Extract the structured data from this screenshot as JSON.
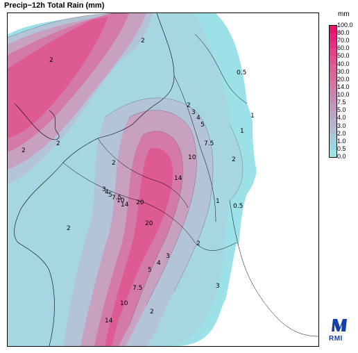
{
  "title": "Precip−12h Total Rain (mm)",
  "legend": {
    "unit": "mm",
    "levels": [
      {
        "label": "100.0",
        "color": "#e8126b"
      },
      {
        "label": "80.0",
        "color": "#e8207a"
      },
      {
        "label": "70.0",
        "color": "#e83080"
      },
      {
        "label": "60.0",
        "color": "#e64088"
      },
      {
        "label": "50.0",
        "color": "#e2508e"
      },
      {
        "label": "40.0",
        "color": "#de5e96"
      },
      {
        "label": "30.0",
        "color": "#d8689c"
      },
      {
        "label": "20.0",
        "color": "#d474a2"
      },
      {
        "label": "14.0",
        "color": "#cc80ac"
      },
      {
        "label": "10.0",
        "color": "#c48cb4"
      },
      {
        "label": "7.5",
        "color": "#c098ba"
      },
      {
        "label": "5.0",
        "color": "#bca4c4"
      },
      {
        "label": "4.0",
        "color": "#b8b0cc"
      },
      {
        "label": "3.0",
        "color": "#b0bcd4"
      },
      {
        "label": "2.0",
        "color": "#a8c8dc"
      },
      {
        "label": "1.0",
        "color": "#9cd4e2"
      },
      {
        "label": "0.5",
        "color": "#9ce0e8"
      },
      {
        "label": "0.0",
        "color": "#ffffff"
      }
    ]
  },
  "contour_labels": [
    {
      "text": "2"
    },
    {
      "text": "2"
    },
    {
      "text": "2"
    },
    {
      "text": "2"
    },
    {
      "text": "2"
    },
    {
      "text": "2"
    },
    {
      "text": "2"
    },
    {
      "text": "3"
    },
    {
      "text": "4"
    },
    {
      "text": "5"
    },
    {
      "text": "7.5"
    },
    {
      "text": "10"
    },
    {
      "text": "14"
    },
    {
      "text": "20"
    },
    {
      "text": "20"
    },
    {
      "text": "14"
    },
    {
      "text": "10"
    },
    {
      "text": "7.5"
    },
    {
      "text": "5"
    },
    {
      "text": "4"
    },
    {
      "text": "3"
    },
    {
      "text": "14"
    },
    {
      "text": "10"
    },
    {
      "text": "7.5"
    },
    {
      "text": "5"
    },
    {
      "text": "4"
    },
    {
      "text": "3"
    },
    {
      "text": "2"
    },
    {
      "text": "1"
    },
    {
      "text": "0.5"
    },
    {
      "text": "1"
    },
    {
      "text": "0.5"
    },
    {
      "text": "2"
    },
    {
      "text": "2"
    },
    {
      "text": "1"
    },
    {
      "text": "3"
    }
  ],
  "logo": {
    "text": "RMI",
    "color": "#1540a8"
  }
}
